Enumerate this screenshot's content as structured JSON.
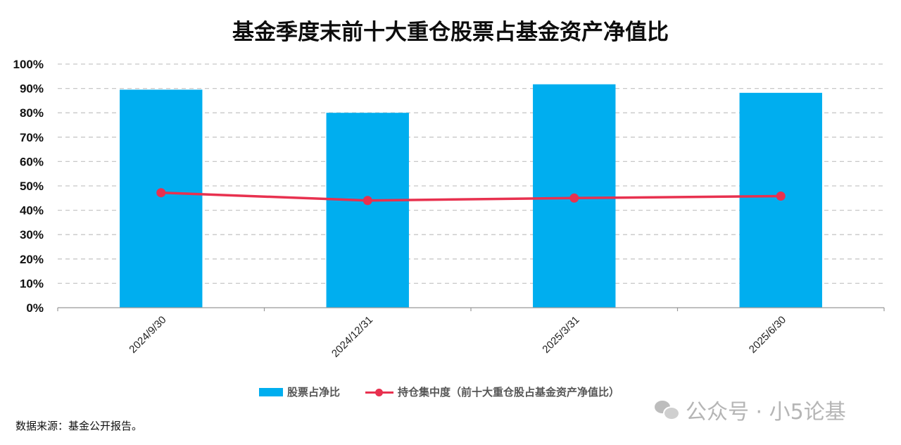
{
  "chart_data": {
    "type": "bar",
    "title": "基金季度末前十大重仓股票占基金资产净值比",
    "categories": [
      "2024/9/30",
      "2024/12/31",
      "2025/3/31",
      "2025/6/30"
    ],
    "series": [
      {
        "name": "股票占净比",
        "type": "bar",
        "values": [
          89.5,
          80.0,
          91.7,
          88.2
        ],
        "color": "#00aeef"
      },
      {
        "name": "持仓集中度（前十大重仓股占基金资产净值比）",
        "type": "line",
        "values": [
          47.2,
          44.0,
          45.0,
          45.8
        ],
        "color": "#e8314f"
      }
    ],
    "ylim": [
      0,
      100
    ],
    "yticks": [
      "0%",
      "10%",
      "20%",
      "30%",
      "40%",
      "50%",
      "60%",
      "70%",
      "80%",
      "90%",
      "100%"
    ],
    "grid": true,
    "legend_position": "bottom"
  },
  "source_note": "数据来源：基金公开报告。",
  "watermark": "公众号 · 小5论基",
  "watermark_icon": "wechat-icon"
}
